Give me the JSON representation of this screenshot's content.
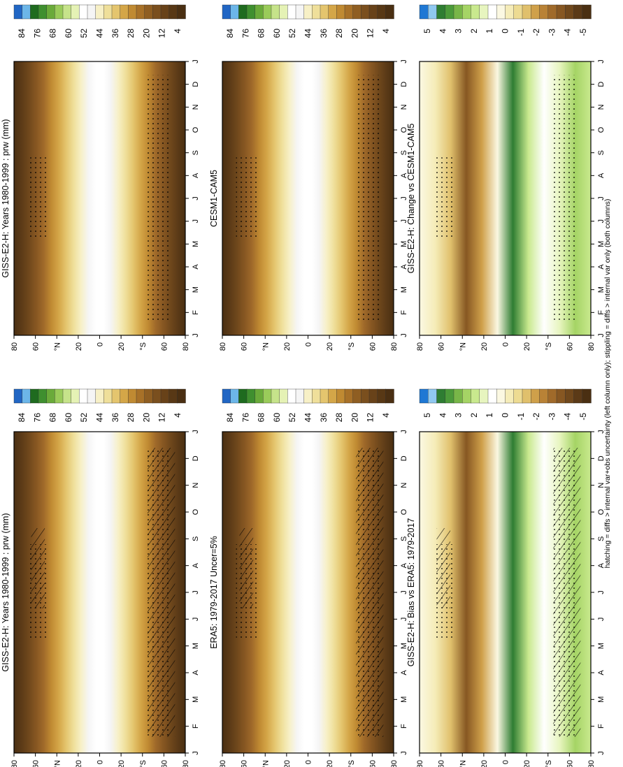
{
  "figure": {
    "footnote": "hatching = diffs > internal var+obs uncertainty (left column only); stippling = diffs > internal var only (both columns)"
  },
  "scales": {
    "absolute": {
      "labels": [
        "84",
        "76",
        "68",
        "60",
        "52",
        "44",
        "36",
        "28",
        "20",
        "12",
        "4"
      ],
      "colors": [
        "#2166c4",
        "#6cb6e8",
        "#1f6b1f",
        "#3f8f2f",
        "#6aaa3a",
        "#9acb5a",
        "#c6e38a",
        "#e5f2b5",
        "#ffffff",
        "#f5f5f5",
        "#f7f0c6",
        "#efdf9a",
        "#e4c56e",
        "#d4a648",
        "#c08a32",
        "#a87128",
        "#8f5e22",
        "#7a4f1e",
        "#684219",
        "#583815",
        "#4a2f12"
      ]
    },
    "difference": {
      "labels": [
        "5",
        "4",
        "3",
        "2",
        "1",
        "0",
        "-1",
        "-2",
        "-3",
        "-4",
        "-5"
      ],
      "colors": [
        "#1f78d4",
        "#8fc8f0",
        "#2e7d32",
        "#4b9a3a",
        "#78b648",
        "#a5d465",
        "#c9e98e",
        "#e7f5bf",
        "#ffffff",
        "#fbf8e2",
        "#f5ecb8",
        "#eddb92",
        "#e0c06c",
        "#cfa04a",
        "#b98236",
        "#a06a2a",
        "#875722",
        "#70481c",
        "#5b3a17",
        "#4a2f12"
      ]
    }
  },
  "panels": [
    {
      "id": "p1",
      "title": "GISS-E2-H: Years 1980-1999 : prw (mm)",
      "scale": "absolute",
      "hatching": true
    },
    {
      "id": "p2",
      "title": "GISS-E2-H: Years 1980-1999 : prw (mm)",
      "scale": "absolute",
      "hatching": false
    },
    {
      "id": "p3",
      "title": "ERA5: 1979-2017 Uncer=5%",
      "scale": "absolute",
      "hatching": true
    },
    {
      "id": "p4",
      "title": "CESM1-CAM5",
      "scale": "absolute",
      "hatching": false
    },
    {
      "id": "p5",
      "title": "GISS-E2-H: Bias vs ERA5: 1979-2017",
      "scale": "difference",
      "hatching": true
    },
    {
      "id": "p6",
      "title": "GISS-E2-H: Change vs CESM1-CAM5",
      "scale": "difference",
      "hatching": false
    }
  ],
  "chart_data": [
    {
      "type": "heatmap",
      "title": "GISS-E2-H: Years 1980-1999 : prw (mm)",
      "x": [
        "J",
        "F",
        "M",
        "A",
        "M",
        "J",
        "J",
        "A",
        "S",
        "O",
        "N",
        "D",
        "J"
      ],
      "y_ticks": [
        "80",
        "60",
        "°N",
        "20",
        "0",
        "20",
        "°S",
        "60",
        "80"
      ],
      "colorbar": [
        "84",
        "76",
        "68",
        "60",
        "52",
        "44",
        "36",
        "28",
        "20",
        "12",
        "4"
      ]
    },
    {
      "type": "heatmap",
      "title": "GISS-E2-H: Years 1980-1999 : prw (mm)",
      "x": [
        "J",
        "F",
        "M",
        "A",
        "M",
        "J",
        "J",
        "A",
        "S",
        "O",
        "N",
        "D",
        "J"
      ],
      "y_ticks": [
        "80",
        "60",
        "°N",
        "20",
        "0",
        "20",
        "°S",
        "60",
        "80"
      ],
      "colorbar": [
        "84",
        "76",
        "68",
        "60",
        "52",
        "44",
        "36",
        "28",
        "20",
        "12",
        "4"
      ]
    },
    {
      "type": "heatmap",
      "title": "ERA5: 1979-2017 Uncer=5%",
      "x": [
        "J",
        "F",
        "M",
        "A",
        "M",
        "J",
        "J",
        "A",
        "S",
        "O",
        "N",
        "D",
        "J"
      ],
      "y_ticks": [
        "80",
        "60",
        "°N",
        "20",
        "0",
        "20",
        "°S",
        "60",
        "80"
      ],
      "colorbar": [
        "84",
        "76",
        "68",
        "60",
        "52",
        "44",
        "36",
        "28",
        "20",
        "12",
        "4"
      ]
    },
    {
      "type": "heatmap",
      "title": "CESM1-CAM5",
      "x": [
        "J",
        "F",
        "M",
        "A",
        "M",
        "J",
        "J",
        "A",
        "S",
        "O",
        "N",
        "D",
        "J"
      ],
      "y_ticks": [
        "80",
        "60",
        "°N",
        "20",
        "0",
        "20",
        "°S",
        "60",
        "80"
      ],
      "colorbar": [
        "84",
        "76",
        "68",
        "60",
        "52",
        "44",
        "36",
        "28",
        "20",
        "12",
        "4"
      ]
    },
    {
      "type": "heatmap",
      "title": "GISS-E2-H: Bias vs ERA5: 1979-2017",
      "x": [
        "J",
        "F",
        "M",
        "A",
        "M",
        "J",
        "J",
        "A",
        "S",
        "O",
        "N",
        "D",
        "J"
      ],
      "y_ticks": [
        "80",
        "60",
        "°N",
        "20",
        "0",
        "20",
        "°S",
        "60",
        "80"
      ],
      "colorbar": [
        "5",
        "4",
        "3",
        "2",
        "1",
        "0",
        "-1",
        "-2",
        "-3",
        "-4",
        "-5"
      ]
    },
    {
      "type": "heatmap",
      "title": "GISS-E2-H: Change vs CESM1-CAM5",
      "x": [
        "J",
        "F",
        "M",
        "A",
        "M",
        "J",
        "J",
        "A",
        "S",
        "O",
        "N",
        "D",
        "J"
      ],
      "y_ticks": [
        "80",
        "60",
        "°N",
        "20",
        "0",
        "20",
        "°S",
        "60",
        "80"
      ],
      "colorbar": [
        "5",
        "4",
        "3",
        "2",
        "1",
        "0",
        "-1",
        "-2",
        "-3",
        "-4",
        "-5"
      ]
    }
  ]
}
